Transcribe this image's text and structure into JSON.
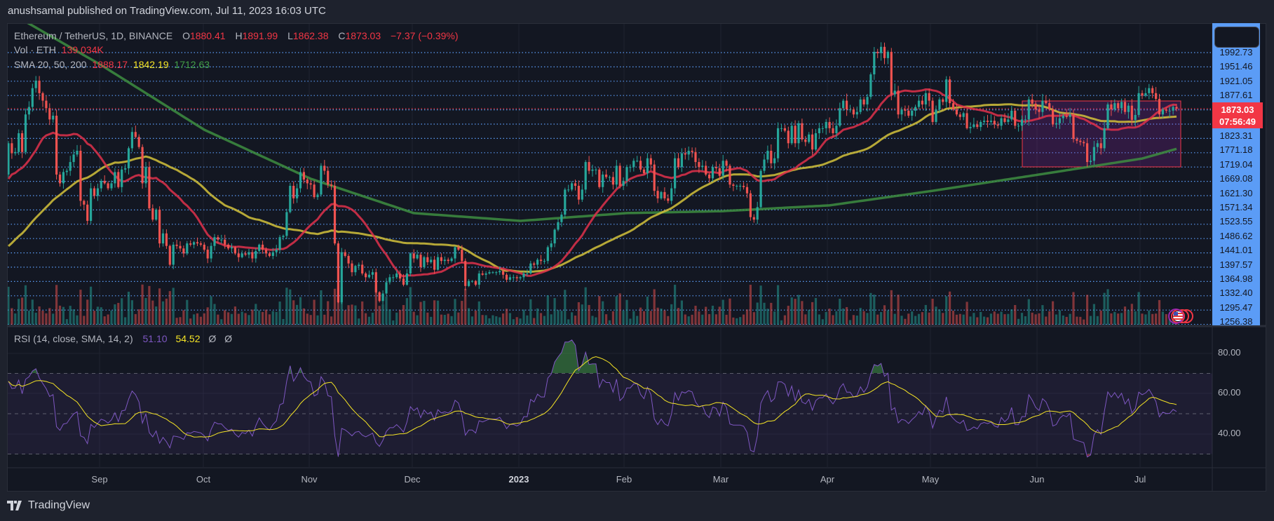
{
  "header": {
    "publisher": "anushsamal published on TradingView.com, Jul 11, 2023 16:03 UTC"
  },
  "legend": {
    "symbol": "Ethereum / TetherUS, 1D, BINANCE",
    "o_label": "O",
    "o": "1880.41",
    "h_label": "H",
    "h": "1891.99",
    "l_label": "L",
    "l": "1862.38",
    "c_label": "C",
    "c": "1873.03",
    "change": "−7.37 (−0.39%)",
    "vol_label": "Vol · ETH",
    "vol": "139.034K",
    "sma_label": "SMA 20, 50, 200",
    "sma20": "1888.17",
    "sma50": "1842.19",
    "sma200": "1712.63"
  },
  "price_axis": {
    "labels_above": [
      "1992.73",
      "1951.46",
      "1921.05",
      "1877.61"
    ],
    "labels_below": [
      "1823.31",
      "1771.18",
      "1719.04",
      "1669.08",
      "1621.30",
      "1571.34",
      "1523.55",
      "1486.62",
      "1441.01",
      "1397.57",
      "1364.98",
      "1332.40",
      "1295.47",
      "1256.38"
    ],
    "current_price": "1873.03",
    "countdown": "07:56:49"
  },
  "rsi": {
    "label": "RSI (14, close, SMA, 14, 2)",
    "value": "51.10",
    "sma": "54.52",
    "extra1": "Ø",
    "extra2": "Ø",
    "axis": [
      "80.00",
      "60.00",
      "40.00"
    ]
  },
  "time_axis": [
    "Sep",
    "Oct",
    "Nov",
    "Dec",
    "2023",
    "Feb",
    "Mar",
    "Apr",
    "May",
    "Jun",
    "Jul"
  ],
  "footer": {
    "brand": "TradingView"
  },
  "colors": {
    "up": "#26a69a",
    "down": "#ef5350",
    "sma20": "#e0314b",
    "sma50": "#d4c23b",
    "sma200": "#3e8e41",
    "rsi": "#7e57c2",
    "rsi_sma": "#f5e425",
    "hline": "#5b9cf6",
    "rect_border": "#f23645"
  },
  "chart_data": {
    "type": "candlestick",
    "symbol": "ETHUSDT",
    "interval": "1D",
    "price_scale": "linear",
    "months": [
      {
        "month": "2022-08",
        "first_day": 5,
        "closes": [
          1735,
          1695,
          1700,
          1775,
          1700,
          1850,
          1880,
          1955,
          1985,
          1935,
          1905,
          1875,
          1830,
          1845,
          1610,
          1575,
          1620,
          1625,
          1660,
          1690,
          1705,
          1505,
          1490,
          1425,
          1555,
          1525,
          1555
        ]
      },
      {
        "month": "2022-09",
        "first_day": 1,
        "closes": [
          1585,
          1575,
          1555,
          1575,
          1620,
          1560,
          1630,
          1635,
          1715,
          1780,
          1760,
          1720,
          1575,
          1640,
          1475,
          1430,
          1470,
          1335,
          1375,
          1325,
          1250,
          1330,
          1325,
          1315,
          1295,
          1335,
          1330,
          1340,
          1335,
          1330
        ]
      },
      {
        "month": "2022-10",
        "first_day": 1,
        "closes": [
          1310,
          1275,
          1325,
          1360,
          1350,
          1350,
          1330,
          1315,
          1320,
          1295,
          1280,
          1295,
          1290,
          1300,
          1275,
          1305,
          1330,
          1310,
          1295,
          1285,
          1300,
          1310,
          1360,
          1365,
          1460,
          1565,
          1515,
          1555,
          1620,
          1590,
          1575
        ]
      },
      {
        "month": "2022-11",
        "first_day": 1,
        "closes": [
          1570,
          1520,
          1530,
          1645,
          1625,
          1570,
          1565,
          1335,
          1100,
          1300,
          1285,
          1255,
          1220,
          1245,
          1250,
          1215,
          1200,
          1210,
          1220,
          1140,
          1105,
          1135,
          1180,
          1200,
          1200,
          1215,
          1195,
          1170,
          1215,
          1295
        ]
      },
      {
        "month": "2022-12",
        "first_day": 1,
        "closes": [
          1275,
          1290,
          1240,
          1280,
          1260,
          1270,
          1230,
          1280,
          1265,
          1270,
          1265,
          1275,
          1320,
          1310,
          1265,
          1165,
          1185,
          1185,
          1170,
          1215,
          1210,
          1215,
          1220,
          1220,
          1220,
          1225,
          1210,
          1190,
          1200,
          1200,
          1196
        ]
      },
      {
        "month": "2023-01",
        "first_day": 1,
        "closes": [
          1200,
          1215,
          1215,
          1255,
          1250,
          1270,
          1265,
          1265,
          1320,
          1335,
          1390,
          1420,
          1450,
          1550,
          1550,
          1575,
          1565,
          1510,
          1550,
          1660,
          1625,
          1630,
          1630,
          1560,
          1610,
          1600,
          1600,
          1570,
          1645,
          1565,
          1585
        ]
      },
      {
        "month": "2023-02",
        "first_day": 1,
        "closes": [
          1640,
          1640,
          1665,
          1665,
          1630,
          1615,
          1675,
          1650,
          1545,
          1515,
          1540,
          1515,
          1505,
          1555,
          1675,
          1640,
          1695,
          1690,
          1705,
          1700,
          1660,
          1640,
          1645,
          1610,
          1595,
          1640,
          1635,
          1605
        ]
      },
      {
        "month": "2023-03",
        "first_day": 1,
        "closes": [
          1665,
          1645,
          1570,
          1565,
          1565,
          1565,
          1560,
          1535,
          1440,
          1430,
          1480,
          1625,
          1670,
          1705,
          1655,
          1675,
          1795,
          1795,
          1785,
          1735,
          1805,
          1735,
          1815,
          1750,
          1740,
          1770,
          1710,
          1775,
          1795,
          1795,
          1820
        ]
      },
      {
        "month": "2023-04",
        "first_day": 1,
        "closes": [
          1795,
          1775,
          1805,
          1875,
          1905,
          1870,
          1870,
          1850,
          1860,
          1910,
          1890,
          1920,
          2010,
          2100,
          2095,
          2120,
          2075,
          2100,
          1930,
          1945,
          1850,
          1870,
          1865,
          1845,
          1865,
          1880,
          1905,
          1890,
          1935,
          1905
        ]
      },
      {
        "month": "2023-05",
        "first_day": 1,
        "closes": [
          1820,
          1870,
          1910,
          1900,
          1990,
          1895,
          1870,
          1850,
          1840,
          1855,
          1795,
          1800,
          1810,
          1800,
          1820,
          1825,
          1820,
          1825,
          1810,
          1805,
          1835,
          1820,
          1830,
          1865,
          1805,
          1805,
          1830,
          1830,
          1910,
          1893,
          1870
        ]
      },
      {
        "month": "2023-06",
        "first_day": 1,
        "closes": [
          1860,
          1905,
          1895,
          1870,
          1810,
          1815,
          1835,
          1845,
          1840,
          1850,
          1752,
          1745,
          1740,
          1735,
          1660,
          1665,
          1720,
          1735,
          1715,
          1795,
          1890,
          1870,
          1895,
          1875,
          1900,
          1860,
          1885,
          1828,
          1848,
          1935
        ]
      },
      {
        "month": "2023-07",
        "first_day": 1,
        "closes": [
          1925,
          1935,
          1955,
          1935,
          1912,
          1850,
          1870,
          1865,
          1865,
          1880,
          1873.03
        ]
      }
    ],
    "last_candle": {
      "open": 1880.41,
      "high": 1891.99,
      "low": 1862.38,
      "close": 1873.03
    },
    "sma200_points": [
      {
        "date": "2022-08-05",
        "value": 2260
      },
      {
        "date": "2022-09-01",
        "value": 2047
      },
      {
        "date": "2022-10-01",
        "value": 1789
      },
      {
        "date": "2022-11-01",
        "value": 1593
      },
      {
        "date": "2022-12-01",
        "value": 1456
      },
      {
        "date": "2023-01-01",
        "value": 1425
      },
      {
        "date": "2023-02-01",
        "value": 1456
      },
      {
        "date": "2023-03-01",
        "value": 1464
      },
      {
        "date": "2023-04-01",
        "value": 1487
      },
      {
        "date": "2023-05-01",
        "value": 1545
      },
      {
        "date": "2023-06-01",
        "value": 1610
      },
      {
        "date": "2023-07-01",
        "value": 1674
      },
      {
        "date": "2023-07-11",
        "value": 1712.63
      }
    ],
    "rsi_levels": [
      70,
      50,
      30
    ],
    "rsi_range": [
      20,
      90
    ],
    "x_tick_labels": [
      "Sep",
      "Oct",
      "Nov",
      "Dec",
      "2023",
      "Feb",
      "Mar",
      "Apr",
      "May",
      "Jun",
      "Jul"
    ]
  }
}
